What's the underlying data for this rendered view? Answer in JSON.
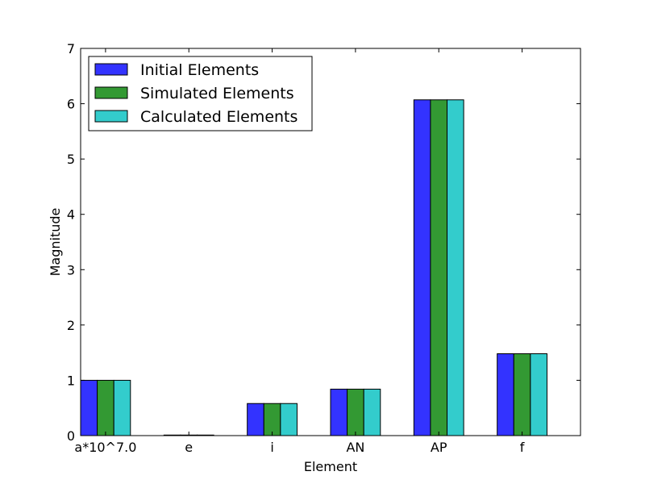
{
  "chart_data": {
    "type": "bar",
    "xlabel": "Element",
    "ylabel": "Magnitude",
    "categories": [
      "a*10^7.0",
      "e",
      "i",
      "AN",
      "AP",
      "f"
    ],
    "ylim": [
      0,
      7
    ],
    "yticks": [
      "0",
      "1",
      "2",
      "3",
      "4",
      "5",
      "6",
      "7"
    ],
    "legend_position": "top-left",
    "series": [
      {
        "name": "Initial Elements",
        "color": "#3333ff",
        "values": [
          1.0,
          0.01,
          0.58,
          0.84,
          6.07,
          1.48
        ]
      },
      {
        "name": "Simulated Elements",
        "color": "#339933",
        "values": [
          1.0,
          0.01,
          0.58,
          0.84,
          6.07,
          1.48
        ]
      },
      {
        "name": "Calculated Elements",
        "color": "#33cccc",
        "values": [
          1.0,
          0.01,
          0.58,
          0.84,
          6.07,
          1.48
        ]
      }
    ]
  }
}
